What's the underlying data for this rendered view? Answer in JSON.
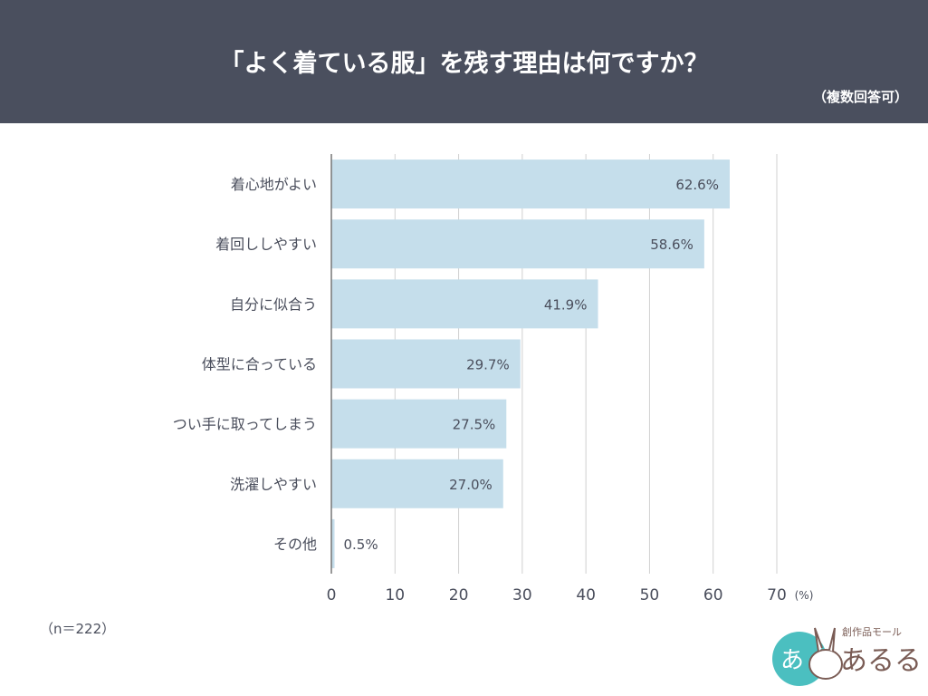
{
  "header": {
    "title": "「よく着ている服」を残す理由は何ですか？",
    "subtitle": "（複数回答可）"
  },
  "footnote": "（n＝222）",
  "logo": {
    "text": "創作品モール あるる"
  },
  "chart_data": {
    "type": "bar",
    "orientation": "horizontal",
    "categories": [
      "着心地がよい",
      "着回ししやすい",
      "自分に似合う",
      "体型に合っている",
      "つい手に取ってしまう",
      "洗濯しやすい",
      "その他"
    ],
    "values": [
      62.6,
      58.6,
      41.9,
      29.7,
      27.5,
      27.0,
      0.5
    ],
    "data_labels": [
      "62.6%",
      "58.6%",
      "41.9%",
      "29.7%",
      "27.5%",
      "27.0%",
      "0.5%"
    ],
    "xlim": [
      0,
      70
    ],
    "xticks": [
      "0",
      "10",
      "20",
      "30",
      "40",
      "50",
      "60",
      "70"
    ],
    "xunit": "(%)",
    "grid": true,
    "bar_color": "#c5deeb",
    "text_color": "#4a4e5c"
  }
}
